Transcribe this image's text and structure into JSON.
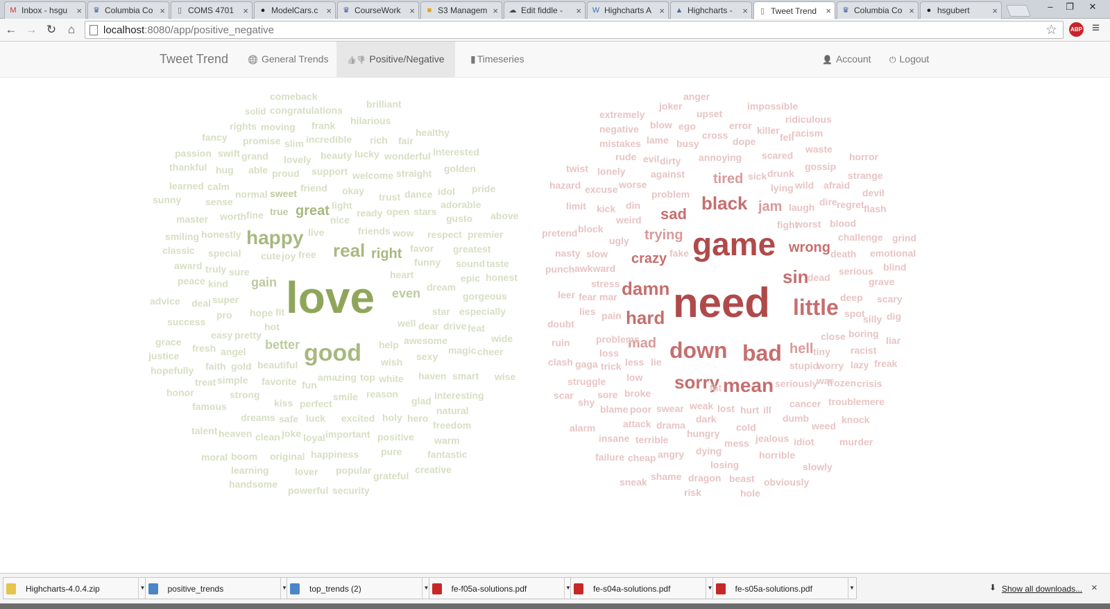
{
  "browser": {
    "tabs": [
      {
        "title": "Inbox - hsgu",
        "icon": "gmail-icon",
        "icon_text": "M",
        "icon_color": "#d93025"
      },
      {
        "title": "Columbia Co",
        "icon": "columbia-crown-icon",
        "icon_text": "♛",
        "icon_color": "#3a5c99"
      },
      {
        "title": "COMS 4701",
        "icon": "page-icon",
        "icon_text": "▯",
        "icon_color": "#666666"
      },
      {
        "title": "ModelCars.c",
        "icon": "github-icon",
        "icon_text": "●",
        "icon_color": "#222222"
      },
      {
        "title": "CourseWork",
        "icon": "columbia-crown-icon",
        "icon_text": "♛",
        "icon_color": "#3a5c99"
      },
      {
        "title": "S3 Managem",
        "icon": "aws-box-icon",
        "icon_text": "■",
        "icon_color": "#e8a317"
      },
      {
        "title": "Edit fiddle -",
        "icon": "jsfiddle-cloud-icon",
        "icon_text": "☁",
        "icon_color": "#444444"
      },
      {
        "title": "Highcharts A",
        "icon": "wordpress-icon",
        "icon_text": "W",
        "icon_color": "#3b6fb6"
      },
      {
        "title": "Highcharts -",
        "icon": "highcharts-icon",
        "icon_text": "▲",
        "icon_color": "#4a6aa5"
      },
      {
        "title": "Tweet Trend",
        "icon": "page-icon",
        "icon_text": "▯",
        "icon_color": "#666666",
        "active": true
      },
      {
        "title": "Columbia Co",
        "icon": "columbia-crown-icon",
        "icon_text": "♛",
        "icon_color": "#3a5c99"
      },
      {
        "title": "hsgubert",
        "icon": "github-icon",
        "icon_text": "●",
        "icon_color": "#222222"
      }
    ],
    "tab_close": "×",
    "window_controls": {
      "minimize": "‒",
      "restore": "❐",
      "close": "✕"
    },
    "nav": {
      "back": "←",
      "forward": "→",
      "reload": "↻",
      "home": "⌂"
    },
    "url_host": "localhost",
    "url_rest": ":8080/app/positive_negative",
    "bookmark_star": "☆",
    "adblock_label": "ABP",
    "menu_icon": "≡"
  },
  "app": {
    "brand": "Tweet Trend",
    "nav": [
      {
        "label": "General Trends",
        "icon": "globe-icon",
        "glyph": "🌐"
      },
      {
        "label": "Positive/Negative",
        "icon": "thumbs-up-down-icon",
        "glyph": "👍👎",
        "active": true
      },
      {
        "label": "Timeseries",
        "icon": "bar-chart-icon",
        "glyph": "▮"
      }
    ],
    "right_nav": [
      {
        "label": "Account",
        "icon": "user-icon",
        "glyph": "👤"
      },
      {
        "label": "Logout",
        "icon": "power-icon",
        "glyph": "⏻"
      }
    ]
  },
  "colors": {
    "positive_scale": [
      "#d6dfc3",
      "#bccb9e",
      "#a7b97f",
      "#8fa65a"
    ],
    "negative_scale": [
      "#e8c4c4",
      "#d99a9a",
      "#c66e6e",
      "#b04a4a"
    ]
  },
  "positive_words": [
    {
      "t": "love",
      "c": 3
    },
    {
      "t": "good",
      "c": 2
    },
    {
      "t": "real",
      "c": 2
    },
    {
      "t": "happy",
      "c": 2
    },
    {
      "t": "great",
      "c": 2
    },
    {
      "t": "right",
      "c": 2
    },
    {
      "t": "even",
      "c": 1
    },
    {
      "t": "gain",
      "c": 1
    },
    {
      "t": "better",
      "c": 1
    },
    {
      "t": "comeback",
      "c": 0
    },
    {
      "t": "brilliant",
      "c": 0
    },
    {
      "t": "solid",
      "c": 0
    },
    {
      "t": "congratulations",
      "c": 0
    },
    {
      "t": "hilarious",
      "c": 0
    },
    {
      "t": "rights",
      "c": 0
    },
    {
      "t": "moving",
      "c": 0
    },
    {
      "t": "frank",
      "c": 0
    },
    {
      "t": "healthy",
      "c": 0
    },
    {
      "t": "fancy",
      "c": 0
    },
    {
      "t": "promise",
      "c": 0
    },
    {
      "t": "incredible",
      "c": 0
    },
    {
      "t": "rich",
      "c": 0
    },
    {
      "t": "fair",
      "c": 0
    },
    {
      "t": "slim",
      "c": 0
    },
    {
      "t": "passion",
      "c": 0
    },
    {
      "t": "swift",
      "c": 0
    },
    {
      "t": "grand",
      "c": 0
    },
    {
      "t": "beauty",
      "c": 0
    },
    {
      "t": "lucky",
      "c": 0
    },
    {
      "t": "wonderful",
      "c": 0
    },
    {
      "t": "interested",
      "c": 0
    },
    {
      "t": "lovely",
      "c": 0
    },
    {
      "t": "thankful",
      "c": 0
    },
    {
      "t": "hug",
      "c": 0
    },
    {
      "t": "able",
      "c": 0
    },
    {
      "t": "proud",
      "c": 0
    },
    {
      "t": "support",
      "c": 0
    },
    {
      "t": "welcome",
      "c": 0
    },
    {
      "t": "straight",
      "c": 0
    },
    {
      "t": "golden",
      "c": 0
    },
    {
      "t": "learned",
      "c": 0
    },
    {
      "t": "calm",
      "c": 0
    },
    {
      "t": "friend",
      "c": 0
    },
    {
      "t": "okay",
      "c": 0
    },
    {
      "t": "trust",
      "c": 0
    },
    {
      "t": "dance",
      "c": 0
    },
    {
      "t": "idol",
      "c": 0
    },
    {
      "t": "pride",
      "c": 0
    },
    {
      "t": "sunny",
      "c": 0
    },
    {
      "t": "normal",
      "c": 0
    },
    {
      "t": "sweet",
      "c": 1
    },
    {
      "t": "sense",
      "c": 0
    },
    {
      "t": "light",
      "c": 0
    },
    {
      "t": "adorable",
      "c": 0
    },
    {
      "t": "worth",
      "c": 0
    },
    {
      "t": "fine",
      "c": 0
    },
    {
      "t": "true",
      "c": 1
    },
    {
      "t": "nice",
      "c": 0
    },
    {
      "t": "ready",
      "c": 0
    },
    {
      "t": "open",
      "c": 0
    },
    {
      "t": "stars",
      "c": 0
    },
    {
      "t": "master",
      "c": 0
    },
    {
      "t": "gusto",
      "c": 0
    },
    {
      "t": "above",
      "c": 0
    },
    {
      "t": "smiling",
      "c": 0
    },
    {
      "t": "honestly",
      "c": 0
    },
    {
      "t": "live",
      "c": 0
    },
    {
      "t": "friends",
      "c": 0
    },
    {
      "t": "wow",
      "c": 0
    },
    {
      "t": "respect",
      "c": 0
    },
    {
      "t": "premier",
      "c": 0
    },
    {
      "t": "classic",
      "c": 0
    },
    {
      "t": "special",
      "c": 0
    },
    {
      "t": "favor",
      "c": 0
    },
    {
      "t": "greatest",
      "c": 0
    },
    {
      "t": "cute",
      "c": 0
    },
    {
      "t": "joy",
      "c": 0
    },
    {
      "t": "free",
      "c": 0
    },
    {
      "t": "funny",
      "c": 0
    },
    {
      "t": "sound",
      "c": 0
    },
    {
      "t": "taste",
      "c": 0
    },
    {
      "t": "award",
      "c": 0
    },
    {
      "t": "truly",
      "c": 0
    },
    {
      "t": "sure",
      "c": 0
    },
    {
      "t": "heart",
      "c": 0
    },
    {
      "t": "epic",
      "c": 0
    },
    {
      "t": "honest",
      "c": 0
    },
    {
      "t": "peace",
      "c": 0
    },
    {
      "t": "kind",
      "c": 0
    },
    {
      "t": "dream",
      "c": 0
    },
    {
      "t": "advice",
      "c": 0
    },
    {
      "t": "deal",
      "c": 0
    },
    {
      "t": "super",
      "c": 0
    },
    {
      "t": "gorgeous",
      "c": 0
    },
    {
      "t": "star",
      "c": 0
    },
    {
      "t": "especially",
      "c": 0
    },
    {
      "t": "pro",
      "c": 0
    },
    {
      "t": "hope",
      "c": 0
    },
    {
      "t": "fit",
      "c": 0
    },
    {
      "t": "success",
      "c": 0
    },
    {
      "t": "hot",
      "c": 0
    },
    {
      "t": "well",
      "c": 0
    },
    {
      "t": "dear",
      "c": 0
    },
    {
      "t": "drive",
      "c": 0
    },
    {
      "t": "feat",
      "c": 0
    },
    {
      "t": "easy",
      "c": 0
    },
    {
      "t": "pretty",
      "c": 0
    },
    {
      "t": "awesome",
      "c": 0
    },
    {
      "t": "wide",
      "c": 0
    },
    {
      "t": "grace",
      "c": 0
    },
    {
      "t": "fresh",
      "c": 0
    },
    {
      "t": "angel",
      "c": 0
    },
    {
      "t": "help",
      "c": 0
    },
    {
      "t": "magic",
      "c": 0
    },
    {
      "t": "cheer",
      "c": 0
    },
    {
      "t": "justice",
      "c": 0
    },
    {
      "t": "sexy",
      "c": 0
    },
    {
      "t": "faith",
      "c": 0
    },
    {
      "t": "gold",
      "c": 0
    },
    {
      "t": "beautiful",
      "c": 0
    },
    {
      "t": "wish",
      "c": 0
    },
    {
      "t": "hopefully",
      "c": 0
    },
    {
      "t": "simple",
      "c": 0
    },
    {
      "t": "amazing",
      "c": 0
    },
    {
      "t": "top",
      "c": 0
    },
    {
      "t": "white",
      "c": 0
    },
    {
      "t": "haven",
      "c": 0
    },
    {
      "t": "smart",
      "c": 0
    },
    {
      "t": "wise",
      "c": 0
    },
    {
      "t": "treat",
      "c": 0
    },
    {
      "t": "favorite",
      "c": 0
    },
    {
      "t": "fun",
      "c": 0
    },
    {
      "t": "honor",
      "c": 0
    },
    {
      "t": "strong",
      "c": 0
    },
    {
      "t": "smile",
      "c": 0
    },
    {
      "t": "reason",
      "c": 0
    },
    {
      "t": "interesting",
      "c": 0
    },
    {
      "t": "famous",
      "c": 0
    },
    {
      "t": "kiss",
      "c": 0
    },
    {
      "t": "perfect",
      "c": 0
    },
    {
      "t": "glad",
      "c": 0
    },
    {
      "t": "natural",
      "c": 0
    },
    {
      "t": "dreams",
      "c": 0
    },
    {
      "t": "safe",
      "c": 0
    },
    {
      "t": "luck",
      "c": 0
    },
    {
      "t": "excited",
      "c": 0
    },
    {
      "t": "holy",
      "c": 0
    },
    {
      "t": "hero",
      "c": 0
    },
    {
      "t": "freedom",
      "c": 0
    },
    {
      "t": "talent",
      "c": 0
    },
    {
      "t": "heaven",
      "c": 0
    },
    {
      "t": "clean",
      "c": 0
    },
    {
      "t": "joke",
      "c": 0
    },
    {
      "t": "loyal",
      "c": 0
    },
    {
      "t": "important",
      "c": 0
    },
    {
      "t": "positive",
      "c": 0
    },
    {
      "t": "warm",
      "c": 0
    },
    {
      "t": "happiness",
      "c": 0
    },
    {
      "t": "pure",
      "c": 0
    },
    {
      "t": "fantastic",
      "c": 0
    },
    {
      "t": "moral",
      "c": 0
    },
    {
      "t": "boom",
      "c": 0
    },
    {
      "t": "original",
      "c": 0
    },
    {
      "t": "learning",
      "c": 0
    },
    {
      "t": "lover",
      "c": 0
    },
    {
      "t": "popular",
      "c": 0
    },
    {
      "t": "grateful",
      "c": 0
    },
    {
      "t": "creative",
      "c": 0
    },
    {
      "t": "handsome",
      "c": 0
    },
    {
      "t": "powerful",
      "c": 0
    },
    {
      "t": "security",
      "c": 0
    }
  ],
  "negative_words": [
    {
      "t": "need",
      "c": 3
    },
    {
      "t": "game",
      "c": 3
    },
    {
      "t": "black",
      "c": 2
    },
    {
      "t": "little",
      "c": 2
    },
    {
      "t": "down",
      "c": 2
    },
    {
      "t": "bad",
      "c": 2
    },
    {
      "t": "mean",
      "c": 2
    },
    {
      "t": "sorry",
      "c": 2
    },
    {
      "t": "hard",
      "c": 2
    },
    {
      "t": "damn",
      "c": 2
    },
    {
      "t": "sin",
      "c": 2
    },
    {
      "t": "sad",
      "c": 2
    },
    {
      "t": "wrong",
      "c": 2
    },
    {
      "t": "crazy",
      "c": 2
    },
    {
      "t": "trying",
      "c": 1
    },
    {
      "t": "tired",
      "c": 1
    },
    {
      "t": "jam",
      "c": 1
    },
    {
      "t": "mad",
      "c": 1
    },
    {
      "t": "hell",
      "c": 1
    },
    {
      "t": "anger",
      "c": 0
    },
    {
      "t": "joker",
      "c": 0
    },
    {
      "t": "impossible",
      "c": 0
    },
    {
      "t": "extremely",
      "c": 0
    },
    {
      "t": "upset",
      "c": 0
    },
    {
      "t": "ridiculous",
      "c": 0
    },
    {
      "t": "negative",
      "c": 0
    },
    {
      "t": "blow",
      "c": 0
    },
    {
      "t": "ego",
      "c": 0
    },
    {
      "t": "error",
      "c": 0
    },
    {
      "t": "killer",
      "c": 0
    },
    {
      "t": "racism",
      "c": 0
    },
    {
      "t": "fell",
      "c": 0
    },
    {
      "t": "mistakes",
      "c": 0
    },
    {
      "t": "lame",
      "c": 0
    },
    {
      "t": "busy",
      "c": 0
    },
    {
      "t": "cross",
      "c": 0
    },
    {
      "t": "dope",
      "c": 0
    },
    {
      "t": "waste",
      "c": 0
    },
    {
      "t": "rude",
      "c": 0
    },
    {
      "t": "evil",
      "c": 0
    },
    {
      "t": "dirty",
      "c": 0
    },
    {
      "t": "annoying",
      "c": 0
    },
    {
      "t": "scared",
      "c": 0
    },
    {
      "t": "horror",
      "c": 0
    },
    {
      "t": "twist",
      "c": 0
    },
    {
      "t": "lonely",
      "c": 0
    },
    {
      "t": "against",
      "c": 0
    },
    {
      "t": "sick",
      "c": 0
    },
    {
      "t": "drunk",
      "c": 0
    },
    {
      "t": "gossip",
      "c": 0
    },
    {
      "t": "strange",
      "c": 0
    },
    {
      "t": "hazard",
      "c": 0
    },
    {
      "t": "excuse",
      "c": 0
    },
    {
      "t": "worse",
      "c": 0
    },
    {
      "t": "problem",
      "c": 0
    },
    {
      "t": "lying",
      "c": 0
    },
    {
      "t": "wild",
      "c": 0
    },
    {
      "t": "afraid",
      "c": 0
    },
    {
      "t": "devil",
      "c": 0
    },
    {
      "t": "limit",
      "c": 0
    },
    {
      "t": "kick",
      "c": 0
    },
    {
      "t": "din",
      "c": 0
    },
    {
      "t": "laugh",
      "c": 0
    },
    {
      "t": "dire",
      "c": 0
    },
    {
      "t": "regret",
      "c": 0
    },
    {
      "t": "flash",
      "c": 0
    },
    {
      "t": "weird",
      "c": 0
    },
    {
      "t": "fight",
      "c": 0
    },
    {
      "t": "worst",
      "c": 0
    },
    {
      "t": "blood",
      "c": 0
    },
    {
      "t": "pretend",
      "c": 0
    },
    {
      "t": "block",
      "c": 0
    },
    {
      "t": "challenge",
      "c": 0
    },
    {
      "t": "grind",
      "c": 0
    },
    {
      "t": "ugly",
      "c": 0
    },
    {
      "t": "death",
      "c": 0
    },
    {
      "t": "emotional",
      "c": 0
    },
    {
      "t": "nasty",
      "c": 0
    },
    {
      "t": "slow",
      "c": 0
    },
    {
      "t": "fake",
      "c": 0
    },
    {
      "t": "punch",
      "c": 0
    },
    {
      "t": "awkward",
      "c": 0
    },
    {
      "t": "blind",
      "c": 0
    },
    {
      "t": "dead",
      "c": 0
    },
    {
      "t": "serious",
      "c": 0
    },
    {
      "t": "stress",
      "c": 0
    },
    {
      "t": "grave",
      "c": 0
    },
    {
      "t": "leer",
      "c": 0
    },
    {
      "t": "fear",
      "c": 0
    },
    {
      "t": "mar",
      "c": 0
    },
    {
      "t": "deep",
      "c": 0
    },
    {
      "t": "scary",
      "c": 0
    },
    {
      "t": "lies",
      "c": 0
    },
    {
      "t": "pain",
      "c": 0
    },
    {
      "t": "spot",
      "c": 0
    },
    {
      "t": "silly",
      "c": 0
    },
    {
      "t": "dig",
      "c": 0
    },
    {
      "t": "doubt",
      "c": 0
    },
    {
      "t": "boring",
      "c": 0
    },
    {
      "t": "close",
      "c": 0
    },
    {
      "t": "ruin",
      "c": 0
    },
    {
      "t": "problems",
      "c": 0
    },
    {
      "t": "liar",
      "c": 0
    },
    {
      "t": "tiny",
      "c": 0
    },
    {
      "t": "racist",
      "c": 0
    },
    {
      "t": "loss",
      "c": 0
    },
    {
      "t": "clash",
      "c": 0
    },
    {
      "t": "gaga",
      "c": 0
    },
    {
      "t": "trick",
      "c": 0
    },
    {
      "t": "less",
      "c": 0
    },
    {
      "t": "lie",
      "c": 0
    },
    {
      "t": "stupid",
      "c": 0
    },
    {
      "t": "worry",
      "c": 0
    },
    {
      "t": "lazy",
      "c": 0
    },
    {
      "t": "freak",
      "c": 0
    },
    {
      "t": "struggle",
      "c": 0
    },
    {
      "t": "low",
      "c": 0
    },
    {
      "t": "fat",
      "c": 0
    },
    {
      "t": "seriously",
      "c": 0
    },
    {
      "t": "war",
      "c": 0
    },
    {
      "t": "frozen",
      "c": 0
    },
    {
      "t": "crisis",
      "c": 0
    },
    {
      "t": "scar",
      "c": 0
    },
    {
      "t": "shy",
      "c": 0
    },
    {
      "t": "sore",
      "c": 0
    },
    {
      "t": "broke",
      "c": 0
    },
    {
      "t": "cancer",
      "c": 0
    },
    {
      "t": "troublemere",
      "c": 0
    },
    {
      "t": "weak",
      "c": 0
    },
    {
      "t": "blame",
      "c": 0
    },
    {
      "t": "poor",
      "c": 0
    },
    {
      "t": "swear",
      "c": 0
    },
    {
      "t": "lost",
      "c": 0
    },
    {
      "t": "hurt",
      "c": 0
    },
    {
      "t": "ill",
      "c": 0
    },
    {
      "t": "dumb",
      "c": 0
    },
    {
      "t": "knock",
      "c": 0
    },
    {
      "t": "dark",
      "c": 0
    },
    {
      "t": "attack",
      "c": 0
    },
    {
      "t": "drama",
      "c": 0
    },
    {
      "t": "cold",
      "c": 0
    },
    {
      "t": "weed",
      "c": 0
    },
    {
      "t": "alarm",
      "c": 0
    },
    {
      "t": "hungry",
      "c": 0
    },
    {
      "t": "insane",
      "c": 0
    },
    {
      "t": "terrible",
      "c": 0
    },
    {
      "t": "mess",
      "c": 0
    },
    {
      "t": "jealous",
      "c": 0
    },
    {
      "t": "idiot",
      "c": 0
    },
    {
      "t": "murder",
      "c": 0
    },
    {
      "t": "failure",
      "c": 0
    },
    {
      "t": "cheap",
      "c": 0
    },
    {
      "t": "angry",
      "c": 0
    },
    {
      "t": "dying",
      "c": 0
    },
    {
      "t": "horrible",
      "c": 0
    },
    {
      "t": "losing",
      "c": 0
    },
    {
      "t": "slowly",
      "c": 0
    },
    {
      "t": "shame",
      "c": 0
    },
    {
      "t": "sneak",
      "c": 0
    },
    {
      "t": "dragon",
      "c": 0
    },
    {
      "t": "beast",
      "c": 0
    },
    {
      "t": "obviously",
      "c": 0
    },
    {
      "t": "risk",
      "c": 0
    },
    {
      "t": "hole",
      "c": 0
    }
  ],
  "downloads": {
    "items": [
      {
        "name": "Highcharts-4.0.4.zip",
        "icon": "zip-file-icon",
        "icon_color": "#e6c34a"
      },
      {
        "name": "positive_trends",
        "icon": "data-file-icon",
        "icon_color": "#4a86c8"
      },
      {
        "name": "top_trends (2)",
        "icon": "data-file-icon",
        "icon_color": "#4a86c8"
      },
      {
        "name": "fe-f05a-solutions.pdf",
        "icon": "pdf-file-icon",
        "icon_color": "#c62828"
      },
      {
        "name": "fe-s04a-solutions.pdf",
        "icon": "pdf-file-icon",
        "icon_color": "#c62828"
      },
      {
        "name": "fe-s05a-solutions.pdf",
        "icon": "pdf-file-icon",
        "icon_color": "#c62828"
      }
    ],
    "arrow": "▼",
    "show_all": "Show all downloads...",
    "show_all_icon": "⬇",
    "close": "×"
  }
}
